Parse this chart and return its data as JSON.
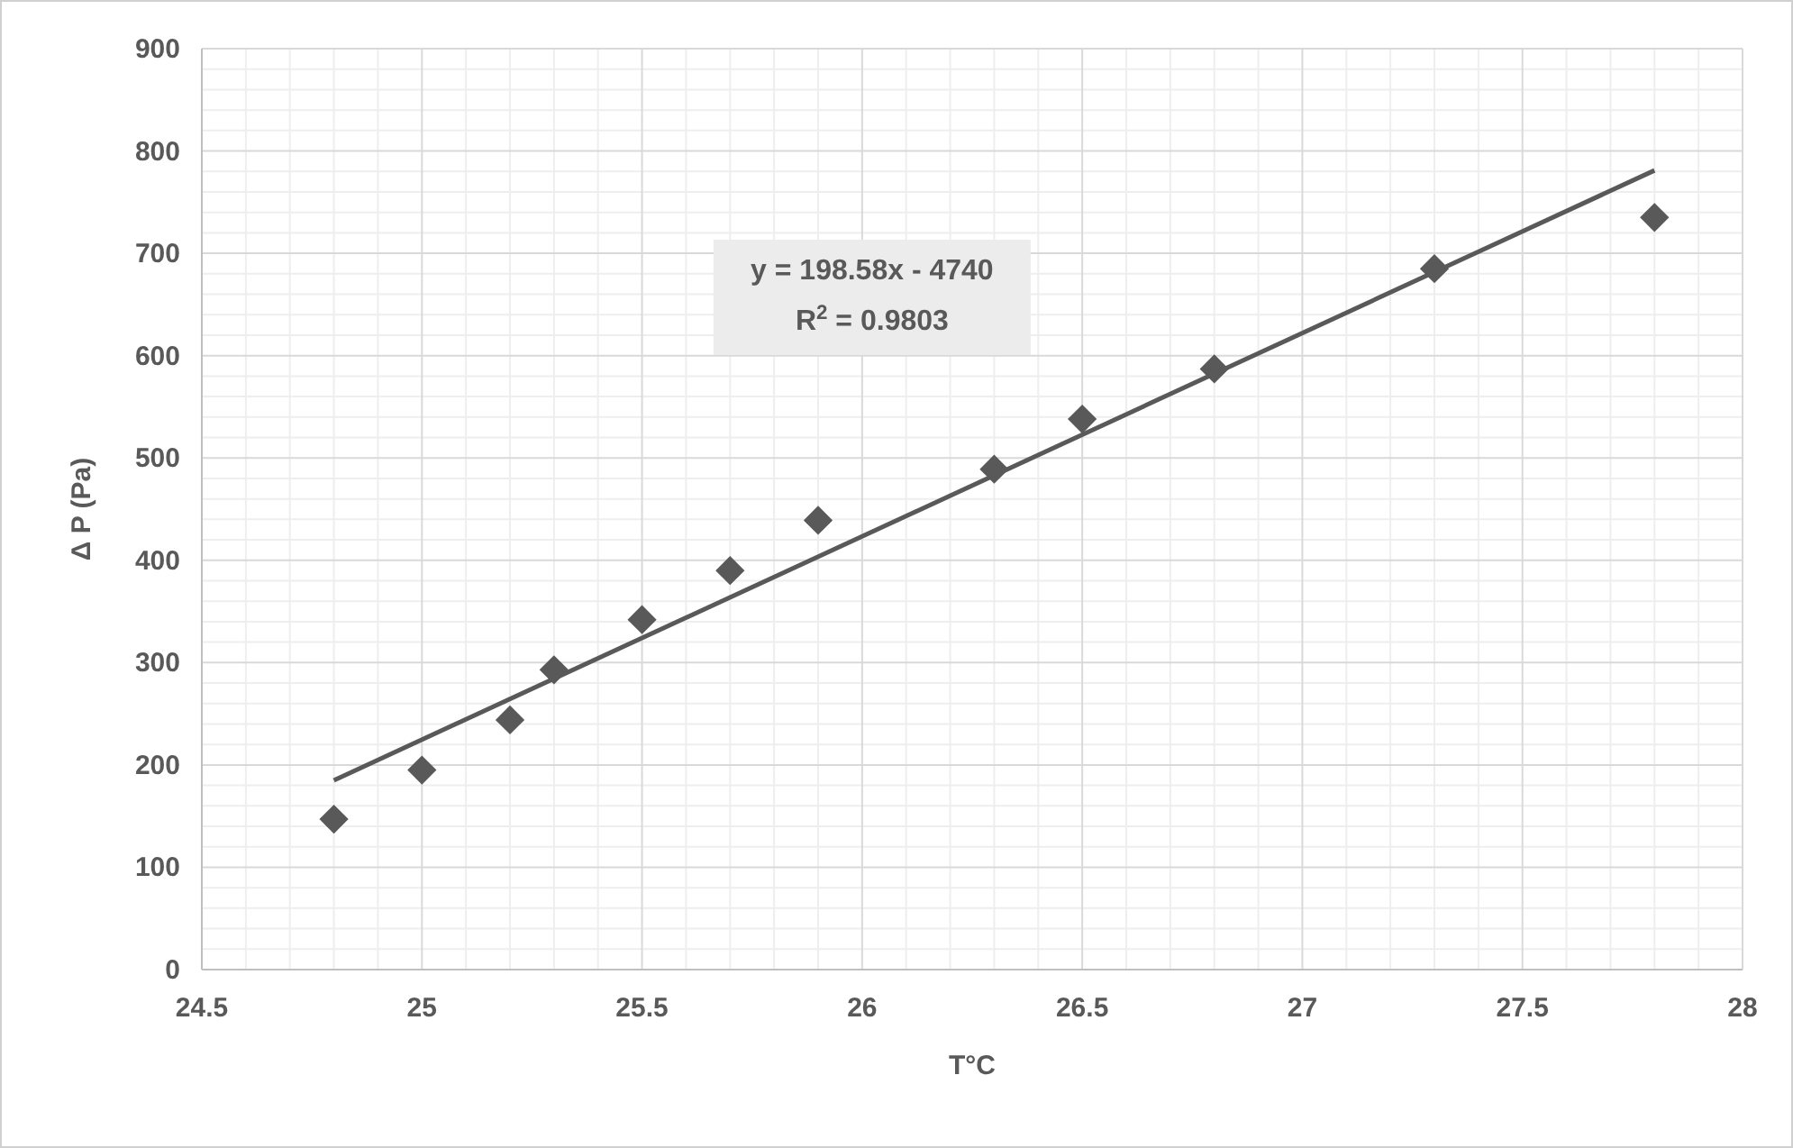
{
  "chart_data": {
    "type": "scatter",
    "xlabel": "T°C",
    "ylabel": "Δ P (Pa)",
    "xlim": [
      24.5,
      28
    ],
    "xticks": [
      24.5,
      25,
      25.5,
      26,
      26.5,
      27,
      27.5,
      28
    ],
    "ylim": [
      0,
      900
    ],
    "yticks": [
      0,
      100,
      200,
      300,
      400,
      500,
      600,
      700,
      800,
      900
    ],
    "grid": true,
    "series": [
      {
        "marker": "diamond",
        "color": "#595959",
        "x": [
          24.8,
          25.0,
          25.2,
          25.3,
          25.5,
          25.7,
          25.9,
          26.3,
          26.5,
          26.8,
          27.3,
          27.8
        ],
        "values": [
          147,
          195,
          244,
          293,
          342,
          390,
          439,
          489,
          538,
          587,
          685,
          735
        ]
      },
      {
        "type": "line",
        "color": "#595959",
        "x": [
          24.8,
          27.8
        ],
        "values": [
          185,
          781
        ]
      }
    ],
    "annotations": [
      "y = 198.58x - 4740",
      "R$^{2}$ = 0.9803"
    ]
  }
}
